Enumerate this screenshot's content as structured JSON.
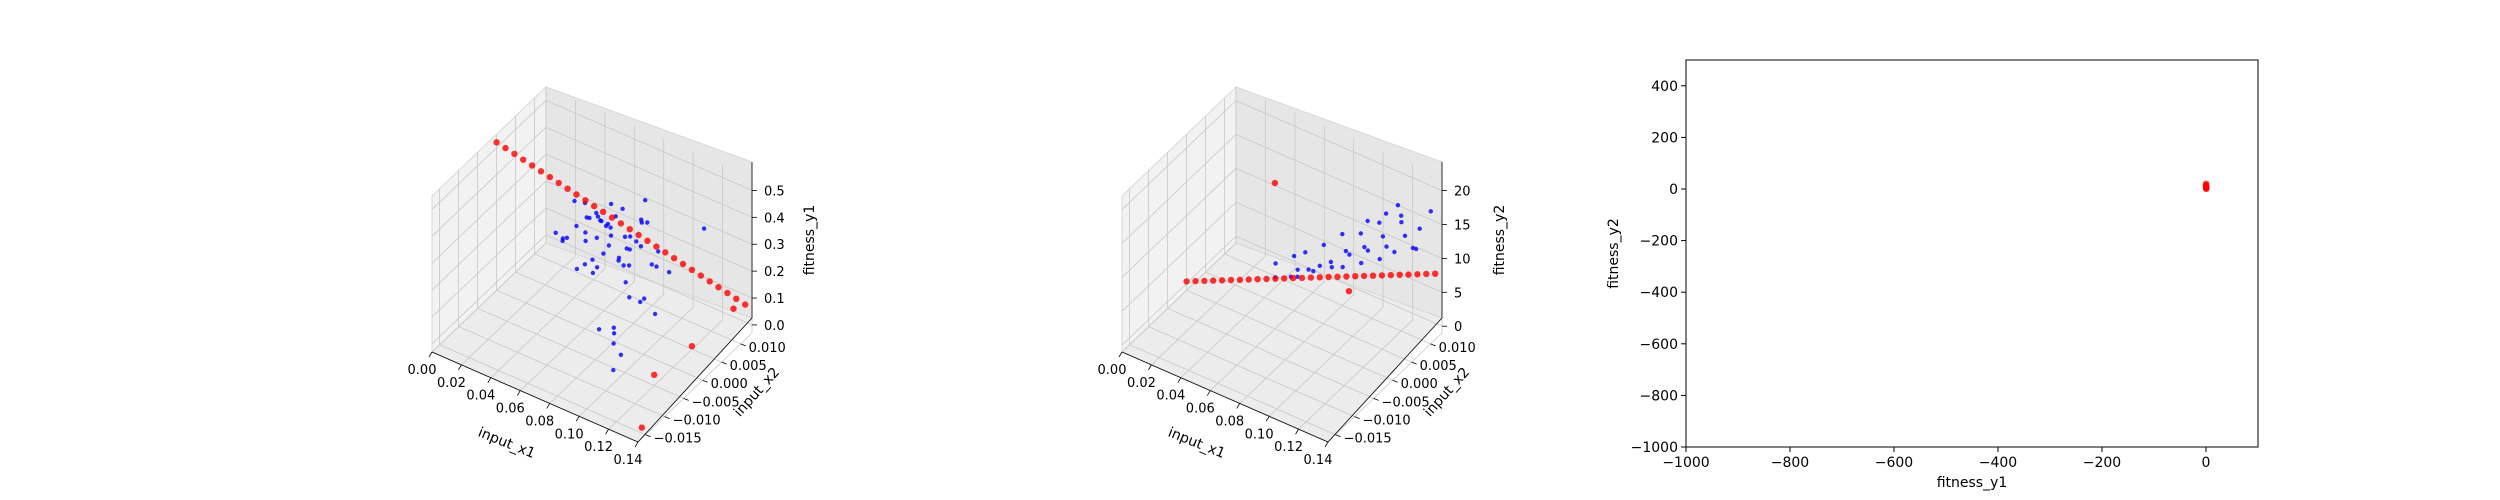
{
  "chart_data": [
    {
      "type": "scatter3d",
      "xlabel": "input_x1",
      "ylabel": "input_x2",
      "zlabel": "fitness_y1",
      "x_ticks": [
        "0.00",
        "0.02",
        "0.04",
        "0.06",
        "0.08",
        "0.10",
        "0.12",
        "0.14"
      ],
      "y_ticks": [
        "−0.015",
        "−0.010",
        "−0.005",
        "0.000",
        "0.005",
        "0.010"
      ],
      "z_ticks": [
        "0.0",
        "0.1",
        "0.2",
        "0.3",
        "0.4",
        "0.5"
      ],
      "xlim": [
        0,
        0.14
      ],
      "ylim": [
        -0.017,
        0.013
      ],
      "zlim": [
        -0.03,
        0.55
      ],
      "grid": true,
      "series": [
        {
          "color": "#0000ff",
          "marker_size": "small",
          "points": [
            [
              0.04,
              0.003,
              0.22
            ],
            [
              0.05,
              0.004,
              0.25
            ],
            [
              0.06,
              0.002,
              0.2
            ],
            [
              0.055,
              0.006,
              0.28
            ],
            [
              0.07,
              0.005,
              0.18
            ],
            [
              0.065,
              0.008,
              0.32
            ],
            [
              0.08,
              0.003,
              0.15
            ],
            [
              0.075,
              0.006,
              0.22
            ],
            [
              0.045,
              0.0,
              0.27
            ],
            [
              0.05,
              -0.002,
              0.3
            ],
            [
              0.06,
              0.0,
              0.21
            ],
            [
              0.07,
              0.001,
              0.26
            ],
            [
              0.085,
              0.002,
              0.12
            ],
            [
              0.09,
              0.004,
              0.1
            ],
            [
              0.04,
              0.005,
              0.33
            ],
            [
              0.055,
              0.008,
              0.24
            ],
            [
              0.065,
              0.01,
              0.19
            ],
            [
              0.075,
              0.009,
              0.29
            ],
            [
              0.08,
              0.007,
              0.23
            ],
            [
              0.06,
              0.003,
              0.36
            ],
            [
              0.05,
              0.007,
              0.19
            ],
            [
              0.07,
              0.003,
              0.3
            ],
            [
              0.035,
              0.002,
              0.24
            ],
            [
              0.045,
              0.006,
              0.18
            ],
            [
              0.09,
              0.006,
              0.2
            ],
            [
              0.095,
              0.001,
              0.14
            ],
            [
              0.1,
              0.003,
              0.08
            ],
            [
              0.058,
              0.004,
              0.14
            ],
            [
              0.062,
              0.006,
              0.27
            ],
            [
              0.078,
              0.002,
              0.25
            ],
            [
              0.048,
              0.009,
              0.22
            ],
            [
              0.068,
              -0.001,
              0.21
            ],
            [
              0.052,
              0.001,
              0.16
            ],
            [
              0.072,
              0.007,
              0.14
            ],
            [
              0.082,
              0.005,
              0.28
            ],
            [
              0.042,
              0.007,
              0.3
            ],
            [
              0.088,
              0.008,
              0.16
            ],
            [
              0.066,
              0.004,
              0.24
            ],
            [
              0.056,
              0.005,
              0.31
            ],
            [
              0.076,
              0.004,
              0.19
            ],
            [
              0.11,
              0.012,
              0.3
            ],
            [
              0.1,
              -0.006,
              0.05
            ],
            [
              0.09,
              -0.004,
              0.1
            ],
            [
              0.1,
              -0.008,
              0.02
            ],
            [
              0.085,
              -0.002,
              0.04
            ],
            [
              0.08,
              -0.004,
              0.07
            ],
            [
              0.095,
              -0.006,
              0.08
            ],
            [
              0.06,
              0.011,
              0.12
            ],
            [
              0.052,
              0.01,
              0.28
            ],
            [
              0.064,
              0.009,
              0.2
            ],
            [
              0.074,
              0.011,
              0.25
            ],
            [
              0.084,
              0.01,
              0.18
            ],
            [
              0.094,
              0.009,
              0.14
            ],
            [
              0.038,
              0.009,
              0.21
            ],
            [
              0.046,
              0.011,
              0.17
            ],
            [
              0.07,
              0.012,
              0.31
            ],
            [
              0.058,
              0.002,
              0.35
            ],
            [
              0.068,
              0.005,
              0.34
            ],
            [
              0.078,
              0.008,
              0.3
            ],
            [
              0.044,
              0.004,
              0.26
            ]
          ]
        },
        {
          "color": "#ff0000",
          "marker_size": "medium",
          "points": [
            [
              0.0,
              0.0,
              0.52
            ],
            [
              0.005,
              0.0004,
              0.505
            ],
            [
              0.01,
              0.0008,
              0.49
            ],
            [
              0.015,
              0.0012,
              0.475
            ],
            [
              0.02,
              0.0016,
              0.46
            ],
            [
              0.025,
              0.002,
              0.445
            ],
            [
              0.03,
              0.0024,
              0.43
            ],
            [
              0.035,
              0.0028,
              0.415
            ],
            [
              0.04,
              0.0032,
              0.4
            ],
            [
              0.045,
              0.0036,
              0.385
            ],
            [
              0.05,
              0.004,
              0.37
            ],
            [
              0.055,
              0.0044,
              0.355
            ],
            [
              0.06,
              0.0048,
              0.34
            ],
            [
              0.065,
              0.0052,
              0.325
            ],
            [
              0.07,
              0.0056,
              0.31
            ],
            [
              0.075,
              0.006,
              0.295
            ],
            [
              0.08,
              0.0064,
              0.28
            ],
            [
              0.085,
              0.0068,
              0.265
            ],
            [
              0.09,
              0.0072,
              0.25
            ],
            [
              0.095,
              0.0076,
              0.235
            ],
            [
              0.1,
              0.008,
              0.22
            ],
            [
              0.105,
              0.0084,
              0.205
            ],
            [
              0.11,
              0.0088,
              0.19
            ],
            [
              0.115,
              0.0092,
              0.175
            ],
            [
              0.12,
              0.0096,
              0.16
            ],
            [
              0.125,
              0.01,
              0.145
            ],
            [
              0.13,
              0.0104,
              0.13
            ],
            [
              0.135,
              0.0108,
              0.115
            ],
            [
              0.14,
              0.0112,
              0.1
            ],
            [
              0.13,
              0.012,
              0.05
            ],
            [
              0.12,
              -0.005,
              0.01
            ],
            [
              0.125,
              0.003,
              0.02
            ],
            [
              0.14,
              -0.016,
              0.01
            ]
          ]
        }
      ]
    },
    {
      "type": "scatter3d",
      "xlabel": "input_x1",
      "ylabel": "input_x2",
      "zlabel": "fitness_y2",
      "x_ticks": [
        "0.00",
        "0.02",
        "0.04",
        "0.06",
        "0.08",
        "0.10",
        "0.12",
        "0.14"
      ],
      "y_ticks": [
        "−0.015",
        "−0.010",
        "−0.005",
        "0.000",
        "0.005",
        "0.010"
      ],
      "z_ticks": [
        "0",
        "5",
        "10",
        "15",
        "20"
      ],
      "xlim": [
        0,
        0.14
      ],
      "ylim": [
        -0.017,
        0.013
      ],
      "zlim": [
        -1,
        22
      ],
      "grid": true,
      "series": [
        {
          "color": "#0000ff",
          "marker_size": "small",
          "points": [
            [
              0.05,
              0.004,
              3.5
            ],
            [
              0.06,
              0.006,
              4.5
            ],
            [
              0.07,
              0.005,
              6.0
            ],
            [
              0.08,
              0.007,
              7.0
            ],
            [
              0.09,
              0.008,
              8.5
            ],
            [
              0.1,
              0.009,
              9.5
            ],
            [
              0.11,
              0.01,
              10.5
            ],
            [
              0.065,
              0.004,
              5.0
            ],
            [
              0.075,
              0.006,
              6.5
            ],
            [
              0.085,
              0.009,
              8.0
            ],
            [
              0.095,
              0.01,
              9.0
            ],
            [
              0.105,
              0.011,
              11.0
            ],
            [
              0.07,
              0.009,
              7.5
            ],
            [
              0.08,
              0.01,
              9.5
            ],
            [
              0.09,
              0.011,
              10.0
            ],
            [
              0.1,
              0.012,
              12.0
            ],
            [
              0.06,
              0.008,
              6.0
            ],
            [
              0.055,
              0.007,
              5.5
            ],
            [
              0.045,
              0.006,
              4.0
            ],
            [
              0.115,
              0.012,
              13.5
            ],
            [
              0.12,
              0.011,
              12.5
            ],
            [
              0.125,
              0.012,
              10.5
            ],
            [
              0.13,
              0.011,
              14.5
            ],
            [
              0.12,
              0.01,
              16.0
            ],
            [
              0.135,
              0.012,
              17.0
            ],
            [
              0.11,
              0.013,
              15.0
            ],
            [
              0.078,
              0.008,
              5.5
            ],
            [
              0.088,
              0.007,
              7.0
            ],
            [
              0.098,
              0.008,
              8.0
            ],
            [
              0.108,
              0.009,
              9.0
            ],
            [
              0.068,
              0.007,
              4.5
            ],
            [
              0.058,
              0.005,
              3.8
            ],
            [
              0.118,
              0.009,
              11.0
            ],
            [
              0.128,
              0.01,
              12.0
            ],
            [
              0.092,
              0.012,
              11.5
            ],
            [
              0.102,
              0.013,
              13.0
            ]
          ]
        },
        {
          "color": "#ff0000",
          "marker_size": "medium",
          "points": [
            [
              0.0,
              0.0,
              0.3
            ],
            [
              0.005,
              0.0004,
              0.6
            ],
            [
              0.01,
              0.0008,
              0.9
            ],
            [
              0.015,
              0.0012,
              1.2
            ],
            [
              0.02,
              0.0016,
              1.5
            ],
            [
              0.025,
              0.002,
              1.8
            ],
            [
              0.03,
              0.0024,
              2.1
            ],
            [
              0.035,
              0.0028,
              2.4
            ],
            [
              0.04,
              0.0032,
              2.7
            ],
            [
              0.045,
              0.0036,
              3.0
            ],
            [
              0.05,
              0.004,
              3.3
            ],
            [
              0.055,
              0.0044,
              3.6
            ],
            [
              0.06,
              0.0048,
              3.9
            ],
            [
              0.065,
              0.0052,
              4.2
            ],
            [
              0.07,
              0.0056,
              4.5
            ],
            [
              0.075,
              0.006,
              4.8
            ],
            [
              0.08,
              0.0064,
              5.1
            ],
            [
              0.085,
              0.0068,
              5.4
            ],
            [
              0.09,
              0.0072,
              5.7
            ],
            [
              0.095,
              0.0076,
              6.0
            ],
            [
              0.1,
              0.008,
              6.3
            ],
            [
              0.105,
              0.0084,
              6.6
            ],
            [
              0.11,
              0.0088,
              6.9
            ],
            [
              0.115,
              0.0092,
              7.2
            ],
            [
              0.12,
              0.0096,
              7.5
            ],
            [
              0.125,
              0.01,
              7.8
            ],
            [
              0.13,
              0.0104,
              8.1
            ],
            [
              0.135,
              0.0108,
              8.4
            ],
            [
              0.14,
              0.0112,
              8.7
            ],
            [
              0.1,
              0.004,
              6.2
            ],
            [
              0.06,
              0.0,
              20.5
            ]
          ]
        }
      ]
    },
    {
      "type": "scatter",
      "xlabel": "fitness_y1",
      "ylabel": "fitness_y2",
      "x_ticks": [
        -1000,
        -800,
        -600,
        -400,
        -200,
        0
      ],
      "y_ticks": [
        -1000,
        -800,
        -600,
        -400,
        -200,
        0,
        200,
        400
      ],
      "xlim": [
        -1000,
        100
      ],
      "ylim": [
        -1000,
        500
      ],
      "grid": false,
      "series": [
        {
          "color": "#ff0000",
          "points": [
            [
              0.5,
              0.3
            ],
            [
              0.45,
              1.5
            ],
            [
              0.4,
              3.0
            ],
            [
              0.35,
              4.5
            ],
            [
              0.3,
              6.0
            ],
            [
              0.25,
              7.5
            ],
            [
              0.2,
              9.0
            ],
            [
              0.15,
              11.0
            ],
            [
              0.1,
              13.0
            ],
            [
              0.05,
              15.0
            ],
            [
              0.01,
              18.0
            ],
            [
              0.3,
              20.5
            ]
          ]
        }
      ]
    }
  ]
}
